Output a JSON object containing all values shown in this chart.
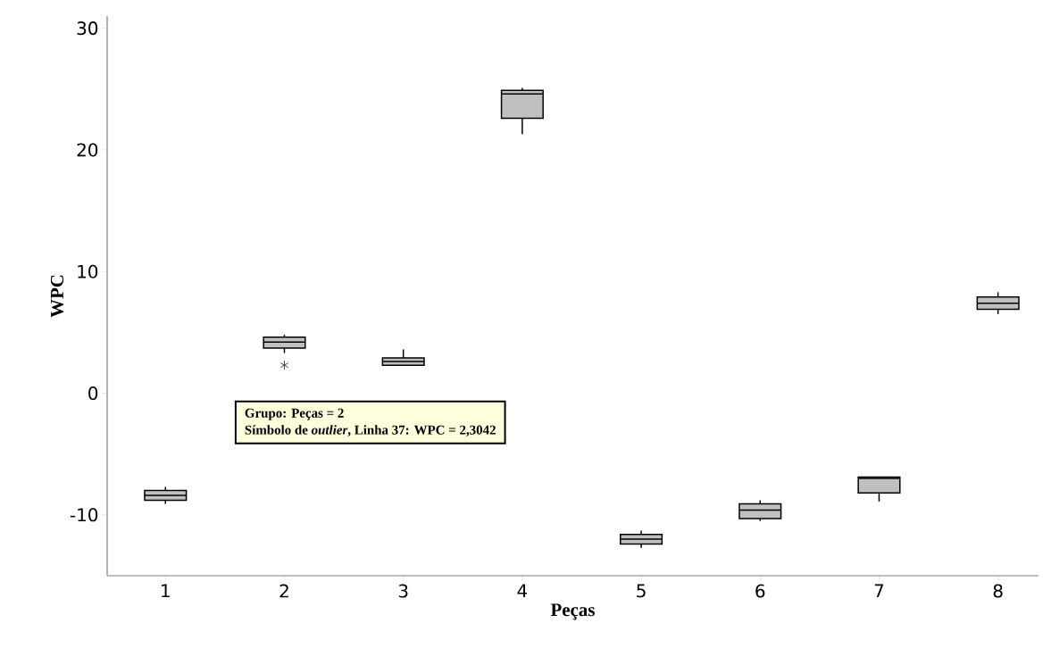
{
  "chart_data": {
    "type": "box",
    "xlabel": "Peças",
    "ylabel": "WPC",
    "categories": [
      "1",
      "2",
      "3",
      "4",
      "5",
      "6",
      "7",
      "8"
    ],
    "color": "#c0c0c0",
    "boxes": [
      {
        "low": -9.1,
        "q1": -8.8,
        "median": -8.4,
        "q3": -8.0,
        "high": -7.7
      },
      {
        "low": 3.3,
        "q1": 3.7,
        "median": 4.2,
        "q3": 4.6,
        "high": 4.8,
        "outliers": [
          2.3042
        ]
      },
      {
        "low": 2.3,
        "q1": 2.3,
        "median": 2.6,
        "q3": 2.9,
        "high": 3.6
      },
      {
        "low": 21.3,
        "q1": 22.6,
        "median": 24.6,
        "q3": 24.9,
        "high": 25.1
      },
      {
        "low": -12.7,
        "q1": -12.4,
        "median": -12.0,
        "q3": -11.6,
        "high": -11.3
      },
      {
        "low": -10.5,
        "q1": -10.3,
        "median": -9.6,
        "q3": -9.1,
        "high": -8.8
      },
      {
        "low": -8.9,
        "q1": -8.2,
        "median": -7.0,
        "q3": -6.9,
        "high": -6.9
      },
      {
        "low": 6.5,
        "q1": 6.9,
        "median": 7.4,
        "q3": 7.9,
        "high": 8.3
      }
    ],
    "ylim": [
      -15,
      31
    ],
    "yticks": [
      -10,
      0,
      10,
      20,
      30
    ],
    "annotations": [
      "**Grupo: Peças = 2**",
      "**Símbolo de *outlier*, Linha 37: WPC = 2,3042**"
    ]
  }
}
